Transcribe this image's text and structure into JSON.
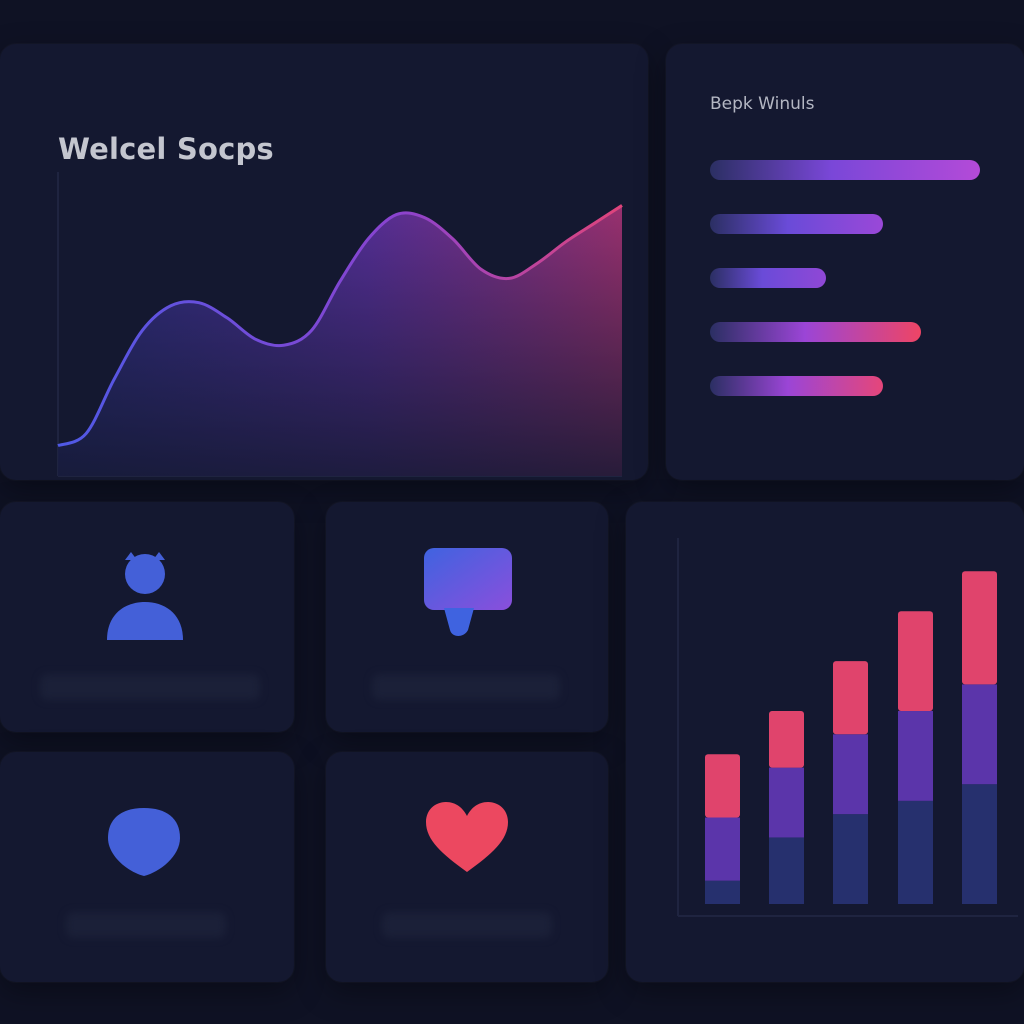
{
  "main_panel": {
    "title": "Welcel Socps",
    "chart_data": {
      "type": "area",
      "title": "Welcel Socps",
      "x": [
        0,
        1,
        2,
        3,
        4,
        5,
        6,
        7,
        8,
        9,
        10,
        11,
        12,
        13,
        14,
        15,
        16,
        17,
        18,
        19,
        20
      ],
      "y": [
        10,
        14,
        32,
        48,
        56,
        57,
        52,
        45,
        43,
        48,
        64,
        78,
        86,
        85,
        78,
        68,
        65,
        70,
        77,
        83,
        89
      ],
      "xlim": [
        0,
        20
      ],
      "ylim": [
        0,
        100
      ],
      "grid": false,
      "colors": [
        "#4f59e6",
        "#e0447a"
      ]
    }
  },
  "bars_panel": {
    "title": "Bepk Winuls",
    "chart_data": {
      "type": "bar",
      "orientation": "horizontal",
      "values": [
        100,
        64,
        43,
        78,
        64
      ],
      "xlim": [
        0,
        100
      ],
      "colors": [
        [
          "#2b2f63",
          "#7a47d8",
          "#b44ad8"
        ],
        [
          "#2b2f63",
          "#6a4bd8",
          "#9a48d8"
        ],
        [
          "#2b2f63",
          "#6a4bd8",
          "#9048d6"
        ],
        [
          "#2b2f63",
          "#9b45d6",
          "#ee4565"
        ],
        [
          "#2b2f63",
          "#9b45d6",
          "#e5467a"
        ]
      ]
    }
  },
  "feature_cards": [
    {
      "icon": "user-icon",
      "color": "#4460d8"
    },
    {
      "icon": "chat-bubble-icon",
      "colors": [
        "#3f63e0",
        "#8a4fdc"
      ]
    },
    {
      "icon": "shield-icon",
      "color": "#4460d8"
    },
    {
      "icon": "heart-icon",
      "color": "#ec4860"
    }
  ],
  "stack_panel": {
    "chart_data": {
      "type": "bar",
      "stacked": true,
      "series": [
        {
          "values": [
            7,
            20,
            27,
            31,
            36
          ],
          "color": "#26306e"
        },
        {
          "values": [
            19,
            21,
            24,
            27,
            30
          ],
          "color": "#5b35aa"
        },
        {
          "values": [
            19,
            17,
            22,
            30,
            34
          ],
          "color": "#e0446c"
        }
      ],
      "ylim": [
        0,
        110
      ],
      "grid": false
    }
  }
}
